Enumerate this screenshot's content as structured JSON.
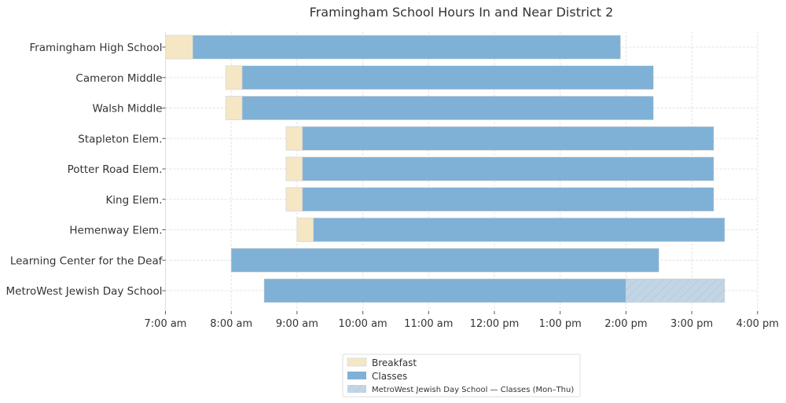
{
  "chart_data": {
    "type": "bar",
    "orientation": "horizontal-gantt",
    "title": "Framingham School Hours In and Near District 2",
    "xlabel": "",
    "ylabel": "",
    "xlim": [
      "7:00 am",
      "4:00 pm"
    ],
    "x_ticks": [
      "7:00 am",
      "8:00 am",
      "9:00 am",
      "10:00 am",
      "11:00 am",
      "12:00 pm",
      "1:00 pm",
      "2:00 pm",
      "3:00 pm",
      "4:00 pm"
    ],
    "grid": true,
    "legend_placement": "bottom-center",
    "colors": {
      "breakfast": "#f5e6c4",
      "classes": "#7fb1d6",
      "mon_thu": "#c2d5e5"
    },
    "legend": [
      "Breakfast",
      "Classes",
      "MetroWest Jewish Day School — Classes (Mon–Thu)"
    ],
    "schools": [
      {
        "name": "Framingham High School",
        "breakfast": [
          "7:00",
          "7:25"
        ],
        "classes": [
          "7:25",
          "13:55"
        ]
      },
      {
        "name": "Cameron Middle",
        "breakfast": [
          "7:55",
          "8:10"
        ],
        "classes": [
          "8:10",
          "14:25"
        ]
      },
      {
        "name": "Walsh Middle",
        "breakfast": [
          "7:55",
          "8:10"
        ],
        "classes": [
          "8:10",
          "14:25"
        ]
      },
      {
        "name": "Stapleton Elem.",
        "breakfast": [
          "8:50",
          "9:05"
        ],
        "classes": [
          "9:05",
          "15:20"
        ]
      },
      {
        "name": "Potter Road Elem.",
        "breakfast": [
          "8:50",
          "9:05"
        ],
        "classes": [
          "9:05",
          "15:20"
        ]
      },
      {
        "name": "King Elem.",
        "breakfast": [
          "8:50",
          "9:05"
        ],
        "classes": [
          "9:05",
          "15:20"
        ]
      },
      {
        "name": "Hemenway Elem.",
        "breakfast": [
          "9:00",
          "9:15"
        ],
        "classes": [
          "9:15",
          "15:30"
        ]
      },
      {
        "name": "Learning Center for the Deaf",
        "breakfast": null,
        "classes": [
          "8:00",
          "14:30"
        ]
      },
      {
        "name": "MetroWest Jewish Day School",
        "breakfast": null,
        "classes": [
          "8:30",
          "14:00"
        ],
        "classes_mon_thu": [
          "14:00",
          "15:30"
        ]
      }
    ]
  }
}
